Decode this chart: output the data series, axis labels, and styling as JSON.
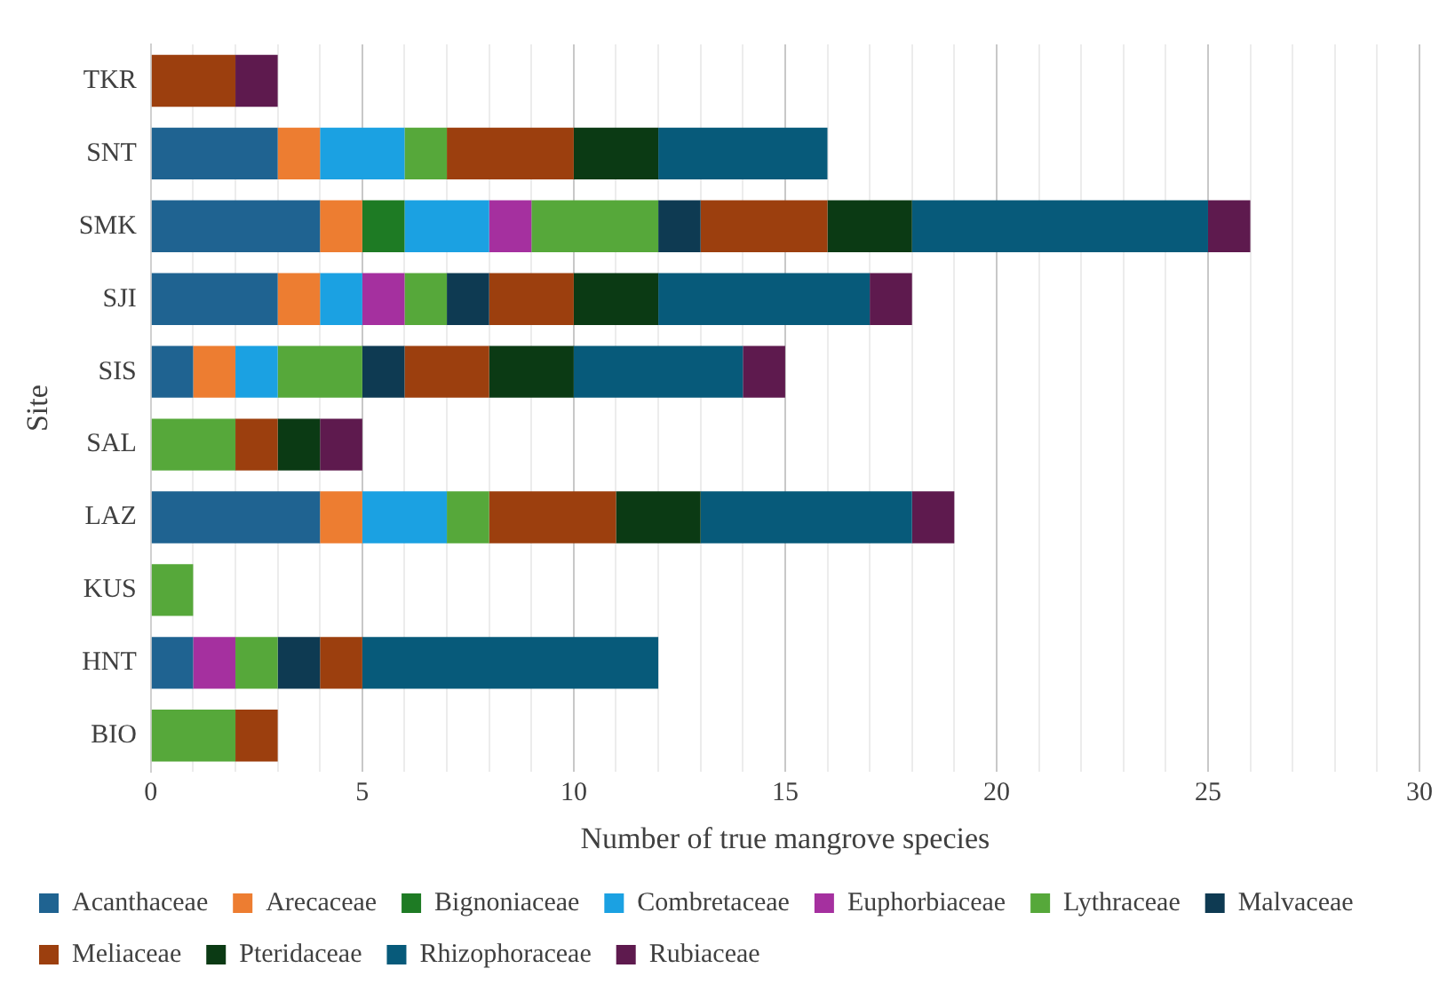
{
  "chart_data": {
    "type": "bar",
    "orientation": "horizontal",
    "stacked": true,
    "xlabel": "Number of true mangrove species",
    "ylabel": "Site",
    "categories": [
      "TKR",
      "SNT",
      "SMK",
      "SJI",
      "SIS",
      "SAL",
      "LAZ",
      "KUS",
      "HNT",
      "BIO"
    ],
    "xlim": [
      0,
      30
    ],
    "xticks": [
      0,
      {
        "value": 1,
        "label": null
      },
      {
        "value": 2,
        "label": null
      },
      {
        "value": 3,
        "label": null
      },
      {
        "value": 4,
        "label": null
      },
      5,
      {
        "value": 6,
        "label": null
      },
      {
        "value": 7,
        "label": null
      },
      {
        "value": 8,
        "label": null
      },
      {
        "value": 9,
        "label": null
      },
      10,
      {
        "value": 11,
        "label": null
      },
      {
        "value": 12,
        "label": null
      },
      {
        "value": 13,
        "label": null
      },
      {
        "value": 14,
        "label": null
      },
      15,
      {
        "value": 16,
        "label": null
      },
      {
        "value": 17,
        "label": null
      },
      {
        "value": 18,
        "label": null
      },
      {
        "value": 19,
        "label": null
      },
      20,
      {
        "value": 21,
        "label": null
      },
      {
        "value": 22,
        "label": null
      },
      {
        "value": 23,
        "label": null
      },
      {
        "value": 24,
        "label": null
      },
      25,
      {
        "value": 26,
        "label": null
      },
      {
        "value": 27,
        "label": null
      },
      {
        "value": 28,
        "label": null
      },
      {
        "value": 29,
        "label": null
      },
      30
    ],
    "grid": "x",
    "legend": "bottom",
    "series": [
      {
        "name": "Acanthaceae",
        "color": "#1f6391",
        "values": [
          0,
          3,
          4,
          3,
          1,
          0,
          4,
          0,
          1,
          0
        ]
      },
      {
        "name": "Arecaceae",
        "color": "#ed7d31",
        "values": [
          0,
          1,
          1,
          1,
          1,
          0,
          1,
          0,
          0,
          0
        ]
      },
      {
        "name": "Bignoniaceae",
        "color": "#1e7b24",
        "values": [
          0,
          0,
          1,
          0,
          0,
          0,
          0,
          0,
          0,
          0
        ]
      },
      {
        "name": "Combretaceae",
        "color": "#1ba1e2",
        "values": [
          0,
          2,
          2,
          1,
          1,
          0,
          2,
          0,
          0,
          0
        ]
      },
      {
        "name": "Euphorbiaceae",
        "color": "#a5309f",
        "values": [
          0,
          0,
          1,
          1,
          0,
          0,
          0,
          0,
          1,
          0
        ]
      },
      {
        "name": "Lythraceae",
        "color": "#56a83a",
        "values": [
          0,
          1,
          3,
          1,
          2,
          2,
          1,
          1,
          1,
          2
        ]
      },
      {
        "name": "Malvaceae",
        "color": "#0e3a52",
        "values": [
          0,
          0,
          1,
          1,
          1,
          0,
          0,
          0,
          1,
          0
        ]
      },
      {
        "name": "Meliaceae",
        "color": "#9c3f0e",
        "values": [
          2,
          3,
          3,
          2,
          2,
          1,
          3,
          0,
          1,
          1
        ]
      },
      {
        "name": "Pteridaceae",
        "color": "#0b3a14",
        "values": [
          0,
          2,
          2,
          2,
          2,
          1,
          2,
          0,
          0,
          0
        ]
      },
      {
        "name": "Rhizophoraceae",
        "color": "#075a7a",
        "values": [
          0,
          4,
          7,
          5,
          4,
          0,
          5,
          0,
          7,
          0
        ]
      },
      {
        "name": "Rubiaceae",
        "color": "#5e1a4e",
        "values": [
          1,
          0,
          1,
          1,
          1,
          1,
          1,
          0,
          0,
          0
        ]
      }
    ]
  }
}
